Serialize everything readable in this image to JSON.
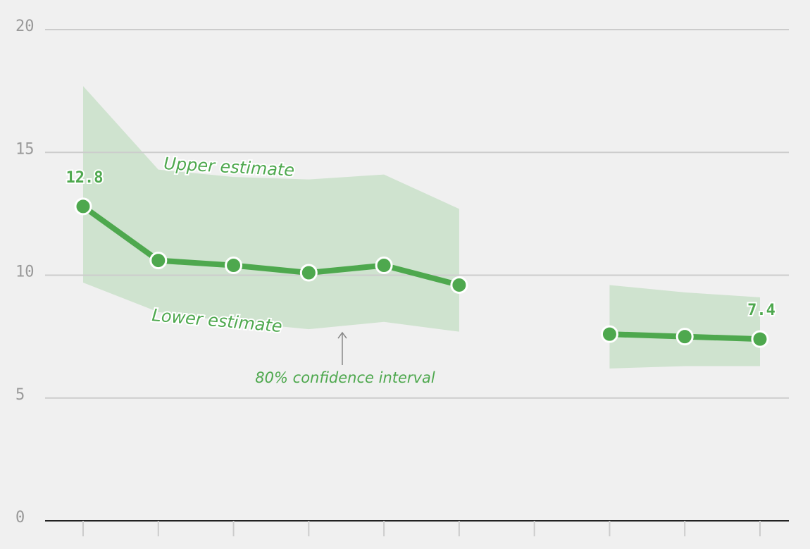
{
  "chart_data": {
    "type": "line",
    "categories": [
      null,
      null,
      null,
      null,
      null,
      null,
      null,
      null,
      null,
      null
    ],
    "values": [
      12.8,
      10.6,
      10.4,
      10.1,
      10.4,
      9.6,
      null,
      7.6,
      7.5,
      7.4
    ],
    "upper": [
      17.7,
      14.3,
      14.0,
      13.9,
      14.1,
      12.7,
      null,
      9.6,
      9.3,
      9.1
    ],
    "lower": [
      9.7,
      8.5,
      8.1,
      7.8,
      8.1,
      7.7,
      null,
      6.2,
      6.3,
      6.3
    ],
    "color": "#4ea84e",
    "band_color": "#cfe3cf",
    "annotations": [
      "Upper estimate",
      "Lower estimate",
      "80% confidence interval"
    ],
    "ylim": [
      0,
      20
    ],
    "yticks": [
      0,
      5,
      10,
      15,
      20
    ],
    "grid": true
  }
}
